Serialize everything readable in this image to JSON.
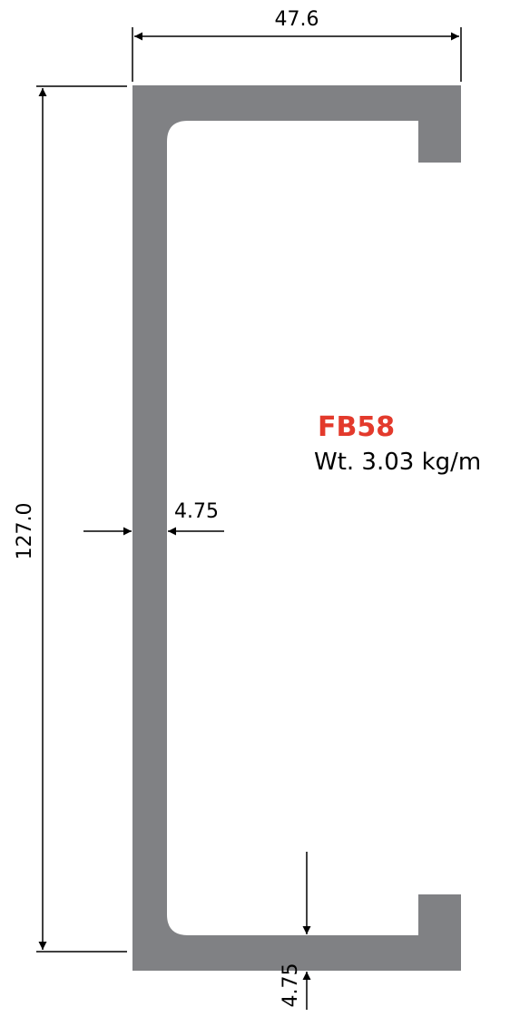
{
  "profile": {
    "code": "FB58",
    "weight": "Wt. 3.03 kg/m"
  },
  "dimensions": {
    "width": "47.6",
    "height": "127.0",
    "web_thickness": "4.75",
    "flange_thickness": "4.75"
  },
  "colors": {
    "profile_fill": "#808184",
    "code_text": "#e33a2c",
    "dimension_lines": "#000000"
  }
}
